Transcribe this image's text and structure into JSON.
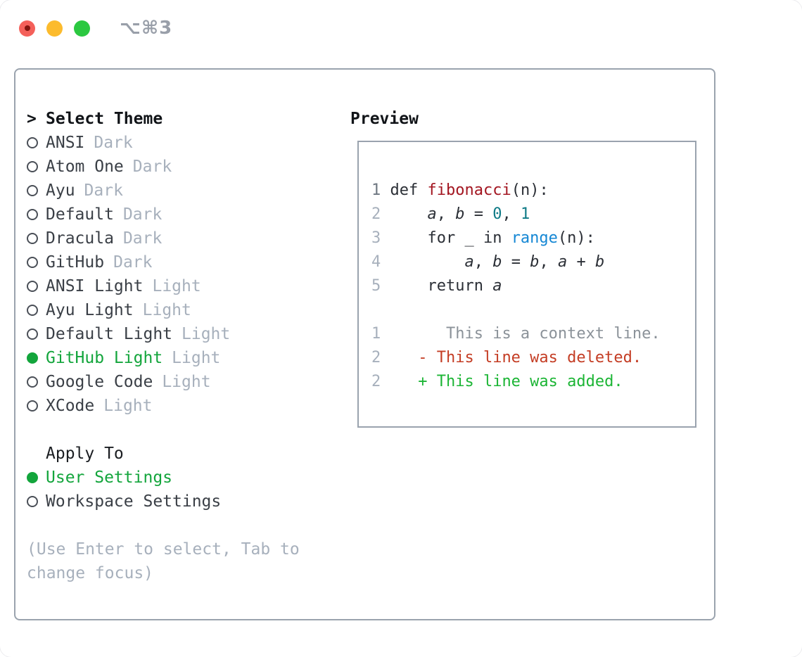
{
  "window": {
    "title": "⌥⌘3"
  },
  "traffic_lights": {
    "close_color": "#f4605a",
    "minimize_color": "#fcbb2d",
    "zoom_color": "#2bc840"
  },
  "theme_panel": {
    "header_prefix": ">",
    "header": "Select Theme",
    "themes": [
      {
        "name": "ANSI",
        "variant": "Dark",
        "selected": false
      },
      {
        "name": "Atom One",
        "variant": "Dark",
        "selected": false
      },
      {
        "name": "Ayu",
        "variant": "Dark",
        "selected": false
      },
      {
        "name": "Default",
        "variant": "Dark",
        "selected": false
      },
      {
        "name": "Dracula",
        "variant": "Dark",
        "selected": false
      },
      {
        "name": "GitHub",
        "variant": "Dark",
        "selected": false
      },
      {
        "name": "ANSI Light",
        "variant": "Light",
        "selected": false
      },
      {
        "name": "Ayu Light",
        "variant": "Light",
        "selected": false
      },
      {
        "name": "Default Light",
        "variant": "Light",
        "selected": false
      },
      {
        "name": "GitHub Light",
        "variant": "Light",
        "selected": true
      },
      {
        "name": "Google Code",
        "variant": "Light",
        "selected": false
      },
      {
        "name": "XCode",
        "variant": "Light",
        "selected": false
      }
    ],
    "apply_header": "Apply To",
    "apply_options": [
      {
        "label": "User Settings",
        "selected": true
      },
      {
        "label": "Workspace Settings",
        "selected": false
      }
    ],
    "hint": "(Use Enter to select, Tab to change focus)"
  },
  "preview_panel": {
    "header": "Preview",
    "code_lines": [
      {
        "num": "1",
        "num_dark": true,
        "segments": [
          {
            "t": "def ",
            "s": "code"
          },
          {
            "t": "fibonacci",
            "s": "func"
          },
          {
            "t": "(n):",
            "s": "code"
          }
        ]
      },
      {
        "num": "2",
        "segments": [
          {
            "t": "    ",
            "s": "code"
          },
          {
            "t": "a",
            "s": "var"
          },
          {
            "t": ", ",
            "s": "code"
          },
          {
            "t": "b",
            "s": "var"
          },
          {
            "t": " = ",
            "s": "code"
          },
          {
            "t": "0",
            "s": "num"
          },
          {
            "t": ", ",
            "s": "code"
          },
          {
            "t": "1",
            "s": "num"
          }
        ]
      },
      {
        "num": "3",
        "segments": [
          {
            "t": "    for _ in ",
            "s": "code"
          },
          {
            "t": "range",
            "s": "builtin"
          },
          {
            "t": "(n):",
            "s": "code"
          }
        ]
      },
      {
        "num": "4",
        "segments": [
          {
            "t": "        ",
            "s": "code"
          },
          {
            "t": "a",
            "s": "var"
          },
          {
            "t": ", ",
            "s": "code"
          },
          {
            "t": "b",
            "s": "var"
          },
          {
            "t": " = ",
            "s": "code"
          },
          {
            "t": "b",
            "s": "var"
          },
          {
            "t": ", ",
            "s": "code"
          },
          {
            "t": "a",
            "s": "var"
          },
          {
            "t": " + ",
            "s": "code"
          },
          {
            "t": "b",
            "s": "var"
          }
        ]
      },
      {
        "num": "5",
        "segments": [
          {
            "t": "    return ",
            "s": "code"
          },
          {
            "t": "a",
            "s": "var"
          }
        ]
      },
      {
        "num": "",
        "segments": []
      },
      {
        "num": "1",
        "segments": [
          {
            "t": "      This is a context line.",
            "s": "context"
          }
        ]
      },
      {
        "num": "2",
        "segments": [
          {
            "t": "   - This line was deleted.",
            "s": "deleted"
          }
        ]
      },
      {
        "num": "2",
        "segments": [
          {
            "t": "   + This line was added.",
            "s": "added"
          }
        ]
      }
    ]
  },
  "colors": {
    "panel_border": "#9aa3ae",
    "selection_green": "#13a53c",
    "muted_text": "#a7b0bc",
    "theme_name_text": "#3a3f46",
    "code_default": "#2b2f36",
    "code_function_red": "#a31621",
    "code_number_teal": "#0e7a86",
    "code_builtin_blue": "#1587d4",
    "diff_context_gray": "#8b9299",
    "diff_deleted_red": "#c43d24",
    "diff_added_green": "#1cb535"
  }
}
